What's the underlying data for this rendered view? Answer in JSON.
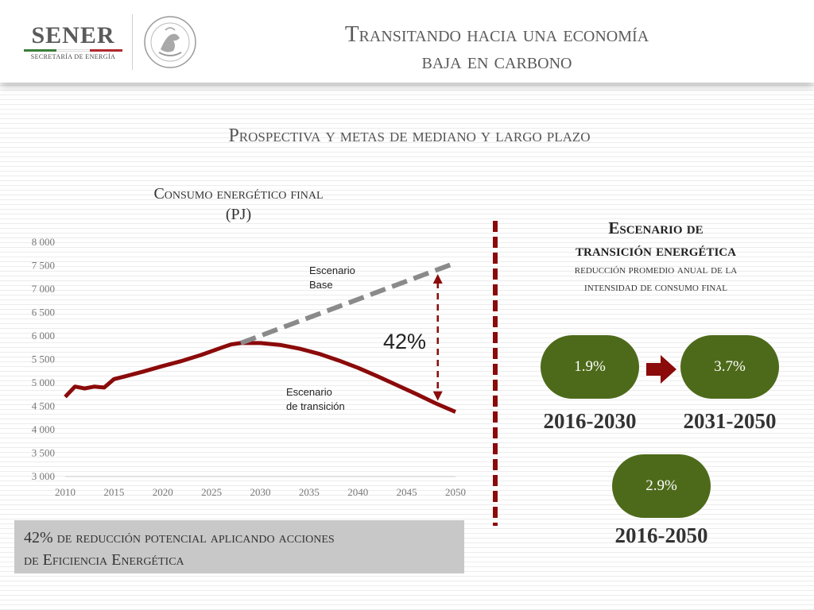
{
  "header": {
    "logo_name": "SENER",
    "logo_subtitle": "SECRETARÍA DE ENERGÍA",
    "title_line1": "Transitando hacia una economía",
    "title_line2": "baja en carbono"
  },
  "section_title": "Prospectiva y metas de mediano y largo plazo",
  "colors": {
    "flag_green": "#3a7d3a",
    "flag_white": "#ffffff",
    "flag_red": "#b0282e",
    "transition_line": "#8b0a0a",
    "base_line": "#8a8a8a",
    "pill_green": "#4d6a1a",
    "box_gray": "#c8c8c8"
  },
  "chart_data": {
    "type": "line",
    "title_line1": "Consumo energético final",
    "title_line2": "(PJ)",
    "xlabel": "",
    "ylabel": "",
    "xlim": [
      2010,
      2050
    ],
    "ylim": [
      3000,
      8000
    ],
    "x_ticks": [
      "2010",
      "2015",
      "2020",
      "2025",
      "2030",
      "2035",
      "2040",
      "2045",
      "2050"
    ],
    "y_ticks": [
      "8 000",
      "7 500",
      "7 000",
      "6 500",
      "6 000",
      "5 500",
      "5 000",
      "4 500",
      "4 000",
      "3 500",
      "3 000"
    ],
    "y_tick_values": [
      8000,
      7500,
      7000,
      6500,
      6000,
      5500,
      5000,
      4500,
      4000,
      3500,
      3000
    ],
    "series": [
      {
        "name": "Escenario de transición",
        "label_line1": "Escenario",
        "label_line2": "de transición",
        "style": "solid",
        "points": [
          [
            2010,
            4700
          ],
          [
            2011,
            4920
          ],
          [
            2012,
            4880
          ],
          [
            2013,
            4920
          ],
          [
            2014,
            4900
          ],
          [
            2015,
            5080
          ],
          [
            2016,
            5130
          ],
          [
            2018,
            5240
          ],
          [
            2020,
            5360
          ],
          [
            2022,
            5470
          ],
          [
            2024,
            5600
          ],
          [
            2026,
            5750
          ],
          [
            2027,
            5820
          ],
          [
            2028,
            5850
          ],
          [
            2030,
            5850
          ],
          [
            2032,
            5810
          ],
          [
            2034,
            5730
          ],
          [
            2036,
            5620
          ],
          [
            2038,
            5480
          ],
          [
            2040,
            5320
          ],
          [
            2042,
            5140
          ],
          [
            2044,
            4950
          ],
          [
            2046,
            4760
          ],
          [
            2048,
            4560
          ],
          [
            2050,
            4380
          ]
        ]
      },
      {
        "name": "Escenario Base",
        "label_line1": "Escenario",
        "label_line2": "Base",
        "style": "dashed",
        "points": [
          [
            2028,
            5850
          ],
          [
            2050,
            7560
          ]
        ]
      }
    ],
    "annotation": {
      "label": "42%",
      "x": 2049,
      "y_from": 7560,
      "y_to": 4380
    }
  },
  "reduction_note": {
    "text_line1": "42% de reducción potencial aplicando acciones",
    "text_line2": "de Eficiencia Energética"
  },
  "scenario_panel": {
    "title_line1": "Escenario de",
    "title_line2": "transición energética",
    "subtitle_line1": "reducción promedio anual de la",
    "subtitle_line2": "intensidad de consumo final",
    "items": [
      {
        "value": "1.9%",
        "period": "2016-2030"
      },
      {
        "value": "3.7%",
        "period": "2031-2050"
      },
      {
        "value": "2.9%",
        "period": "2016-2050"
      }
    ]
  }
}
